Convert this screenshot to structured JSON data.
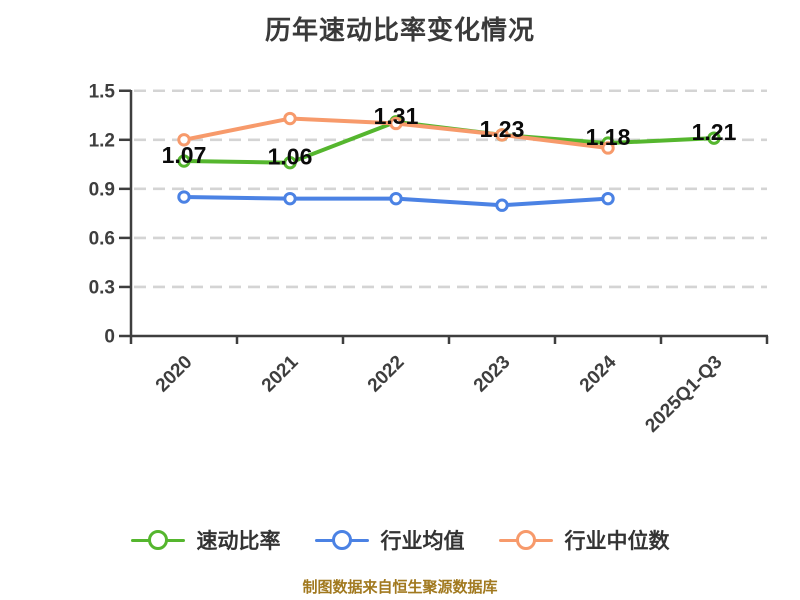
{
  "footer": {
    "text": "制图数据来自恒生聚源数据库"
  },
  "colors": {
    "green": "#55b62e",
    "blue": "#4b82e4",
    "orange": "#f79a6b",
    "axis": "#3e3e3e",
    "grid": "#d4d4d4",
    "title_text": "#3a3a3a",
    "value_label_text": "#0b0b0b",
    "legend_text": "#333333",
    "footer_text": "#a1791f",
    "marker_fill": "#ffffff"
  },
  "chart_data": {
    "type": "line",
    "title": "历年速动比率变化情况",
    "categories": [
      "2020",
      "2021",
      "2022",
      "2023",
      "2024",
      "2025Q1-Q3"
    ],
    "x_tick_labels": [
      "2020",
      "2021",
      "2022",
      "2023",
      "2024",
      "2025Q1-Q3"
    ],
    "y_ticks": [
      0,
      0.3,
      0.6,
      0.9,
      1.2,
      1.5
    ],
    "y_tick_labels": [
      "0",
      "0.3",
      "0.6",
      "0.9",
      "1.2",
      "1.5"
    ],
    "ylim": [
      0,
      1.5
    ],
    "grid": "horizontal-dashed",
    "legend_position": "bottom",
    "marker_style": "circle-white-fill-colored-ring",
    "series": [
      {
        "name": "速动比率",
        "color_key": "green",
        "values": [
          1.07,
          1.06,
          1.31,
          1.23,
          1.18,
          1.21
        ],
        "labels": [
          "1.07",
          "1.06",
          "1.31",
          "1.23",
          "1.18",
          "1.21"
        ]
      },
      {
        "name": "行业均值",
        "color_key": "blue",
        "values": [
          0.85,
          0.84,
          0.84,
          0.8,
          0.84,
          null
        ]
      },
      {
        "name": "行业中位数",
        "color_key": "orange",
        "values": [
          1.2,
          1.33,
          1.3,
          1.23,
          1.15,
          null
        ]
      }
    ]
  }
}
